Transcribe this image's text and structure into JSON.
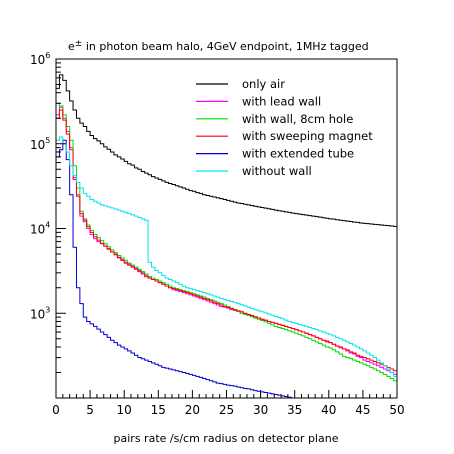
{
  "chart_data": {
    "type": "line",
    "title": "e± in photon beam halo, 4GeV endpoint, 1MHz tagged",
    "title_prefix": "e",
    "title_superscript": "±",
    "title_rest": " in photon beam halo, 4GeV endpoint, 1MHz tagged",
    "xlabel": "pairs rate /s/cm radius on detector plane",
    "ylabel": "",
    "xlim": [
      0,
      50
    ],
    "ylim": [
      100,
      1000000
    ],
    "y_scale": "log",
    "grid": false,
    "legend_position": "top-right",
    "x_ticks": [
      "0",
      "5",
      "10",
      "15",
      "20",
      "25",
      "30",
      "35",
      "40",
      "45",
      "50"
    ],
    "y_ticks": [
      {
        "value": 1000,
        "base": "10",
        "exp": "3"
      },
      {
        "value": 10000,
        "base": "10",
        "exp": "4"
      },
      {
        "value": 100000,
        "base": "10",
        "exp": "5"
      },
      {
        "value": 1000000,
        "base": "10",
        "exp": "6"
      }
    ],
    "x": [
      0.25,
      0.75,
      1.25,
      1.75,
      2.25,
      2.75,
      3.25,
      3.75,
      4.25,
      4.75,
      5.25,
      5.75,
      6.25,
      6.75,
      7.25,
      7.75,
      8.25,
      8.75,
      9.25,
      9.75,
      10.25,
      10.75,
      11.25,
      11.75,
      12.25,
      12.75,
      13.25,
      13.75,
      14.25,
      14.75,
      15.25,
      15.75,
      16.25,
      16.75,
      17.25,
      17.75,
      18.25,
      18.75,
      19.25,
      19.75,
      20.25,
      20.75,
      21.25,
      21.75,
      22.25,
      22.75,
      23.25,
      23.75,
      24.25,
      24.75,
      25.25,
      25.75,
      26.25,
      26.75,
      27.25,
      27.75,
      28.25,
      28.75,
      29.25,
      29.75,
      30.25,
      30.75,
      31.25,
      31.75,
      32.25,
      32.75,
      33.25,
      33.75,
      34.25,
      34.75,
      35.25,
      35.75,
      36.25,
      36.75,
      37.25,
      37.75,
      38.25,
      38.75,
      39.25,
      39.75,
      40.25,
      40.75,
      41.25,
      41.75,
      42.25,
      42.75,
      43.25,
      43.75,
      44.25,
      44.75,
      45.25,
      45.75,
      46.25,
      46.75,
      47.25,
      47.75,
      48.25,
      48.75,
      49.25,
      49.75
    ],
    "series": [
      {
        "name": "only air",
        "color": "#000000",
        "values": [
          450000,
          650000,
          560000,
          420000,
          320000,
          250000,
          200000,
          175000,
          160000,
          140000,
          125000,
          115000,
          108000,
          100000,
          92000,
          86000,
          80000,
          74000,
          70000,
          66000,
          62000,
          58000,
          56000,
          52000,
          50000,
          47000,
          45000,
          43000,
          41000,
          39500,
          38000,
          36500,
          35000,
          34000,
          33000,
          32000,
          31000,
          30000,
          29000,
          28000,
          27500,
          26500,
          26000,
          25000,
          24500,
          24000,
          23500,
          23000,
          22500,
          22000,
          21500,
          21000,
          20500,
          20000,
          19700,
          19300,
          19000,
          18600,
          18300,
          18000,
          17700,
          17400,
          17100,
          16800,
          16500,
          16200,
          16000,
          15700,
          15500,
          15200,
          15000,
          14800,
          14600,
          14400,
          14200,
          14000,
          13800,
          13600,
          13400,
          13200,
          13000,
          12900,
          12700,
          12500,
          12400,
          12200,
          12100,
          11900,
          11800,
          11600,
          11500,
          11400,
          11300,
          11200,
          11100,
          11000,
          10900,
          10800,
          10700,
          10600
        ]
      },
      {
        "name": "with lead wall",
        "color": "#ff00ff",
        "values": [
          220000,
          270000,
          200000,
          140000,
          90000,
          40000,
          25000,
          14000,
          12000,
          10000,
          8500,
          7600,
          7000,
          6600,
          6200,
          5800,
          5300,
          5000,
          4600,
          4300,
          4000,
          3800,
          3600,
          3400,
          3200,
          3000,
          2800,
          2700,
          2500,
          2500,
          2300,
          2200,
          2100,
          2000,
          1900,
          1850,
          1800,
          1750,
          1700,
          1650,
          1600,
          1550,
          1500,
          1450,
          1400,
          1350,
          1300,
          1250,
          1200,
          1180,
          1150,
          1100,
          1080,
          1050,
          1000,
          980,
          950,
          920,
          900,
          880,
          850,
          820,
          800,
          780,
          760,
          740,
          720,
          700,
          680,
          660,
          640,
          620,
          600,
          580,
          560,
          540,
          520,
          500,
          480,
          460,
          450,
          430,
          410,
          390,
          380,
          360,
          340,
          330,
          310,
          300,
          280,
          270,
          260,
          250,
          240,
          230,
          220,
          210,
          200,
          190
        ]
      },
      {
        "name": "with wall, 8cm hole",
        "color": "#00dd00",
        "values": [
          300000,
          280000,
          220000,
          160000,
          110000,
          55000,
          30000,
          16000,
          13000,
          11000,
          9500,
          8500,
          7800,
          7200,
          6600,
          6100,
          5600,
          5200,
          4800,
          4500,
          4200,
          3900,
          3700,
          3500,
          3300,
          3100,
          2900,
          2700,
          2600,
          2500,
          2400,
          2300,
          2200,
          2100,
          2000,
          1950,
          1900,
          1850,
          1800,
          1750,
          1700,
          1650,
          1600,
          1550,
          1500,
          1450,
          1400,
          1350,
          1300,
          1250,
          1200,
          1150,
          1100,
          1050,
          1000,
          970,
          940,
          910,
          880,
          850,
          820,
          790,
          760,
          730,
          700,
          680,
          660,
          640,
          620,
          600,
          580,
          560,
          540,
          520,
          500,
          480,
          460,
          440,
          420,
          400,
          390,
          370,
          350,
          330,
          310,
          300,
          290,
          280,
          270,
          260,
          250,
          240,
          230,
          220,
          210,
          200,
          190,
          180,
          170,
          160
        ]
      },
      {
        "name": "with sweeping magnet",
        "color": "#ff0000",
        "values": [
          200000,
          250000,
          190000,
          130000,
          85000,
          38000,
          24000,
          15000,
          12500,
          10500,
          9000,
          8000,
          7300,
          6700,
          6200,
          5700,
          5300,
          4900,
          4500,
          4200,
          3900,
          3700,
          3500,
          3300,
          3100,
          2900,
          2700,
          2600,
          2500,
          2400,
          2300,
          2200,
          2100,
          2000,
          1950,
          1900,
          1850,
          1800,
          1750,
          1700,
          1650,
          1600,
          1550,
          1500,
          1450,
          1400,
          1350,
          1300,
          1250,
          1200,
          1170,
          1130,
          1100,
          1070,
          1040,
          1000,
          970,
          940,
          910,
          880,
          850,
          830,
          800,
          780,
          760,
          740,
          720,
          700,
          680,
          660,
          640,
          620,
          600,
          580,
          560,
          540,
          520,
          500,
          480,
          470,
          450,
          430,
          410,
          400,
          380,
          370,
          350,
          340,
          320,
          310,
          300,
          290,
          280,
          270,
          260,
          250,
          240,
          230,
          220,
          210
        ]
      },
      {
        "name": "with extended tube",
        "color": "#0000cc",
        "values": [
          70000,
          85000,
          110000,
          65000,
          25000,
          6000,
          2000,
          1300,
          900,
          800,
          750,
          700,
          650,
          600,
          560,
          520,
          480,
          450,
          420,
          400,
          380,
          360,
          340,
          320,
          300,
          290,
          280,
          270,
          260,
          250,
          240,
          230,
          225,
          220,
          215,
          210,
          205,
          200,
          195,
          190,
          185,
          180,
          175,
          170,
          165,
          160,
          155,
          150,
          148,
          145,
          142,
          140,
          138,
          135,
          132,
          130,
          128,
          125,
          122,
          120,
          118,
          116,
          114,
          112,
          110,
          108,
          106,
          104,
          102,
          100,
          100,
          100,
          100,
          100,
          100,
          100,
          100,
          100,
          100,
          100,
          100,
          100,
          100,
          100,
          100,
          100,
          100,
          100,
          100,
          100,
          100,
          100,
          100,
          100,
          100,
          100,
          100,
          100,
          100,
          100
        ]
      },
      {
        "name": "without wall",
        "color": "#00e5ee",
        "values": [
          110000,
          120000,
          100000,
          80000,
          55000,
          42000,
          35000,
          30000,
          26000,
          24000,
          22000,
          21000,
          20000,
          19000,
          18500,
          18000,
          17500,
          17000,
          16500,
          16000,
          15500,
          15000,
          14500,
          14000,
          13500,
          13000,
          12500,
          4000,
          3500,
          3200,
          3000,
          2800,
          2600,
          2500,
          2400,
          2300,
          2200,
          2100,
          2000,
          1950,
          1900,
          1850,
          1800,
          1750,
          1700,
          1650,
          1600,
          1550,
          1500,
          1460,
          1420,
          1380,
          1340,
          1300,
          1260,
          1220,
          1180,
          1140,
          1100,
          1070,
          1040,
          1010,
          980,
          950,
          920,
          890,
          860,
          830,
          800,
          780,
          760,
          740,
          720,
          700,
          680,
          660,
          640,
          620,
          600,
          580,
          560,
          540,
          520,
          500,
          480,
          460,
          440,
          420,
          400,
          380,
          360,
          340,
          320,
          300,
          280,
          260,
          240,
          220,
          200,
          180
        ]
      }
    ]
  }
}
